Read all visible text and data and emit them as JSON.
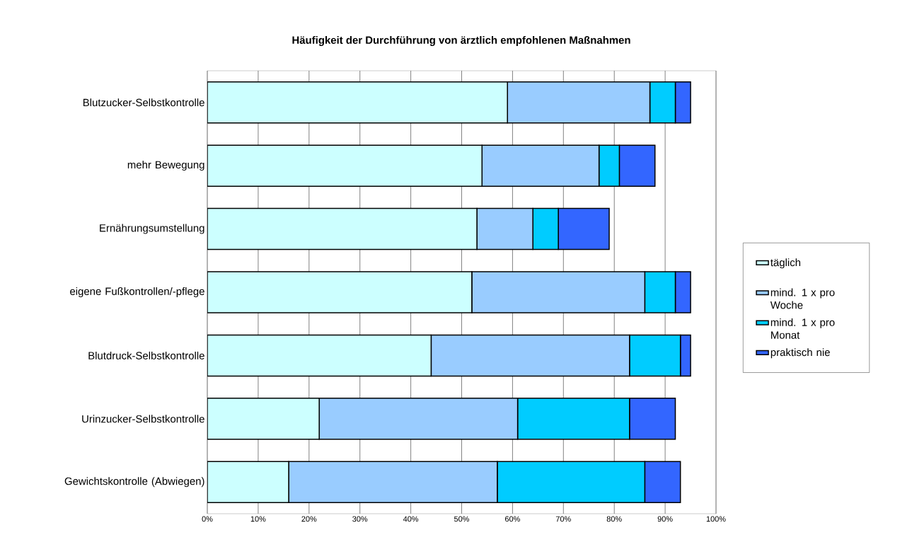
{
  "chart_data": {
    "type": "bar",
    "orientation": "horizontal",
    "stacked": true,
    "title": "Häufigkeit der Durchführung von ärztlich empfohlenen Maßnahmen",
    "categories": [
      "Blutzucker-Selbstkontrolle",
      "mehr Bewegung",
      "Ernährungsumstellung",
      "eigene Fußkontrollen/-pflege",
      "Blutdruck-Selbstkontrolle",
      "Urinzucker-Selbstkontrolle",
      "Gewichtskontrolle (Abwiegen)"
    ],
    "series": [
      {
        "name": "täglich",
        "color": "#ccffff",
        "values": [
          59,
          54,
          53,
          52,
          44,
          22,
          16
        ]
      },
      {
        "name": "mind. 1 x pro Woche",
        "color": "#99ccff",
        "values": [
          28,
          23,
          11,
          34,
          39,
          39,
          41
        ]
      },
      {
        "name": "mind. 1 x pro Monat",
        "color": "#00ccff",
        "values": [
          5,
          4,
          5,
          6,
          10,
          22,
          29
        ]
      },
      {
        "name": "praktisch nie",
        "color": "#3366ff",
        "values": [
          3,
          7,
          10,
          3,
          2,
          9,
          7
        ]
      }
    ],
    "xlim": [
      0,
      100
    ],
    "xticks": [
      {
        "value": 0,
        "label": "0%"
      },
      {
        "value": 10,
        "label": "10%"
      },
      {
        "value": 20,
        "label": "20%"
      },
      {
        "value": 30,
        "label": "30%"
      },
      {
        "value": 40,
        "label": "40%"
      },
      {
        "value": 50,
        "label": "50%"
      },
      {
        "value": 60,
        "label": "60%"
      },
      {
        "value": 70,
        "label": "70%"
      },
      {
        "value": 80,
        "label": "80%"
      },
      {
        "value": 90,
        "label": "90%"
      },
      {
        "value": 100,
        "label": "100%"
      }
    ],
    "grid": "x",
    "legend": "right"
  }
}
